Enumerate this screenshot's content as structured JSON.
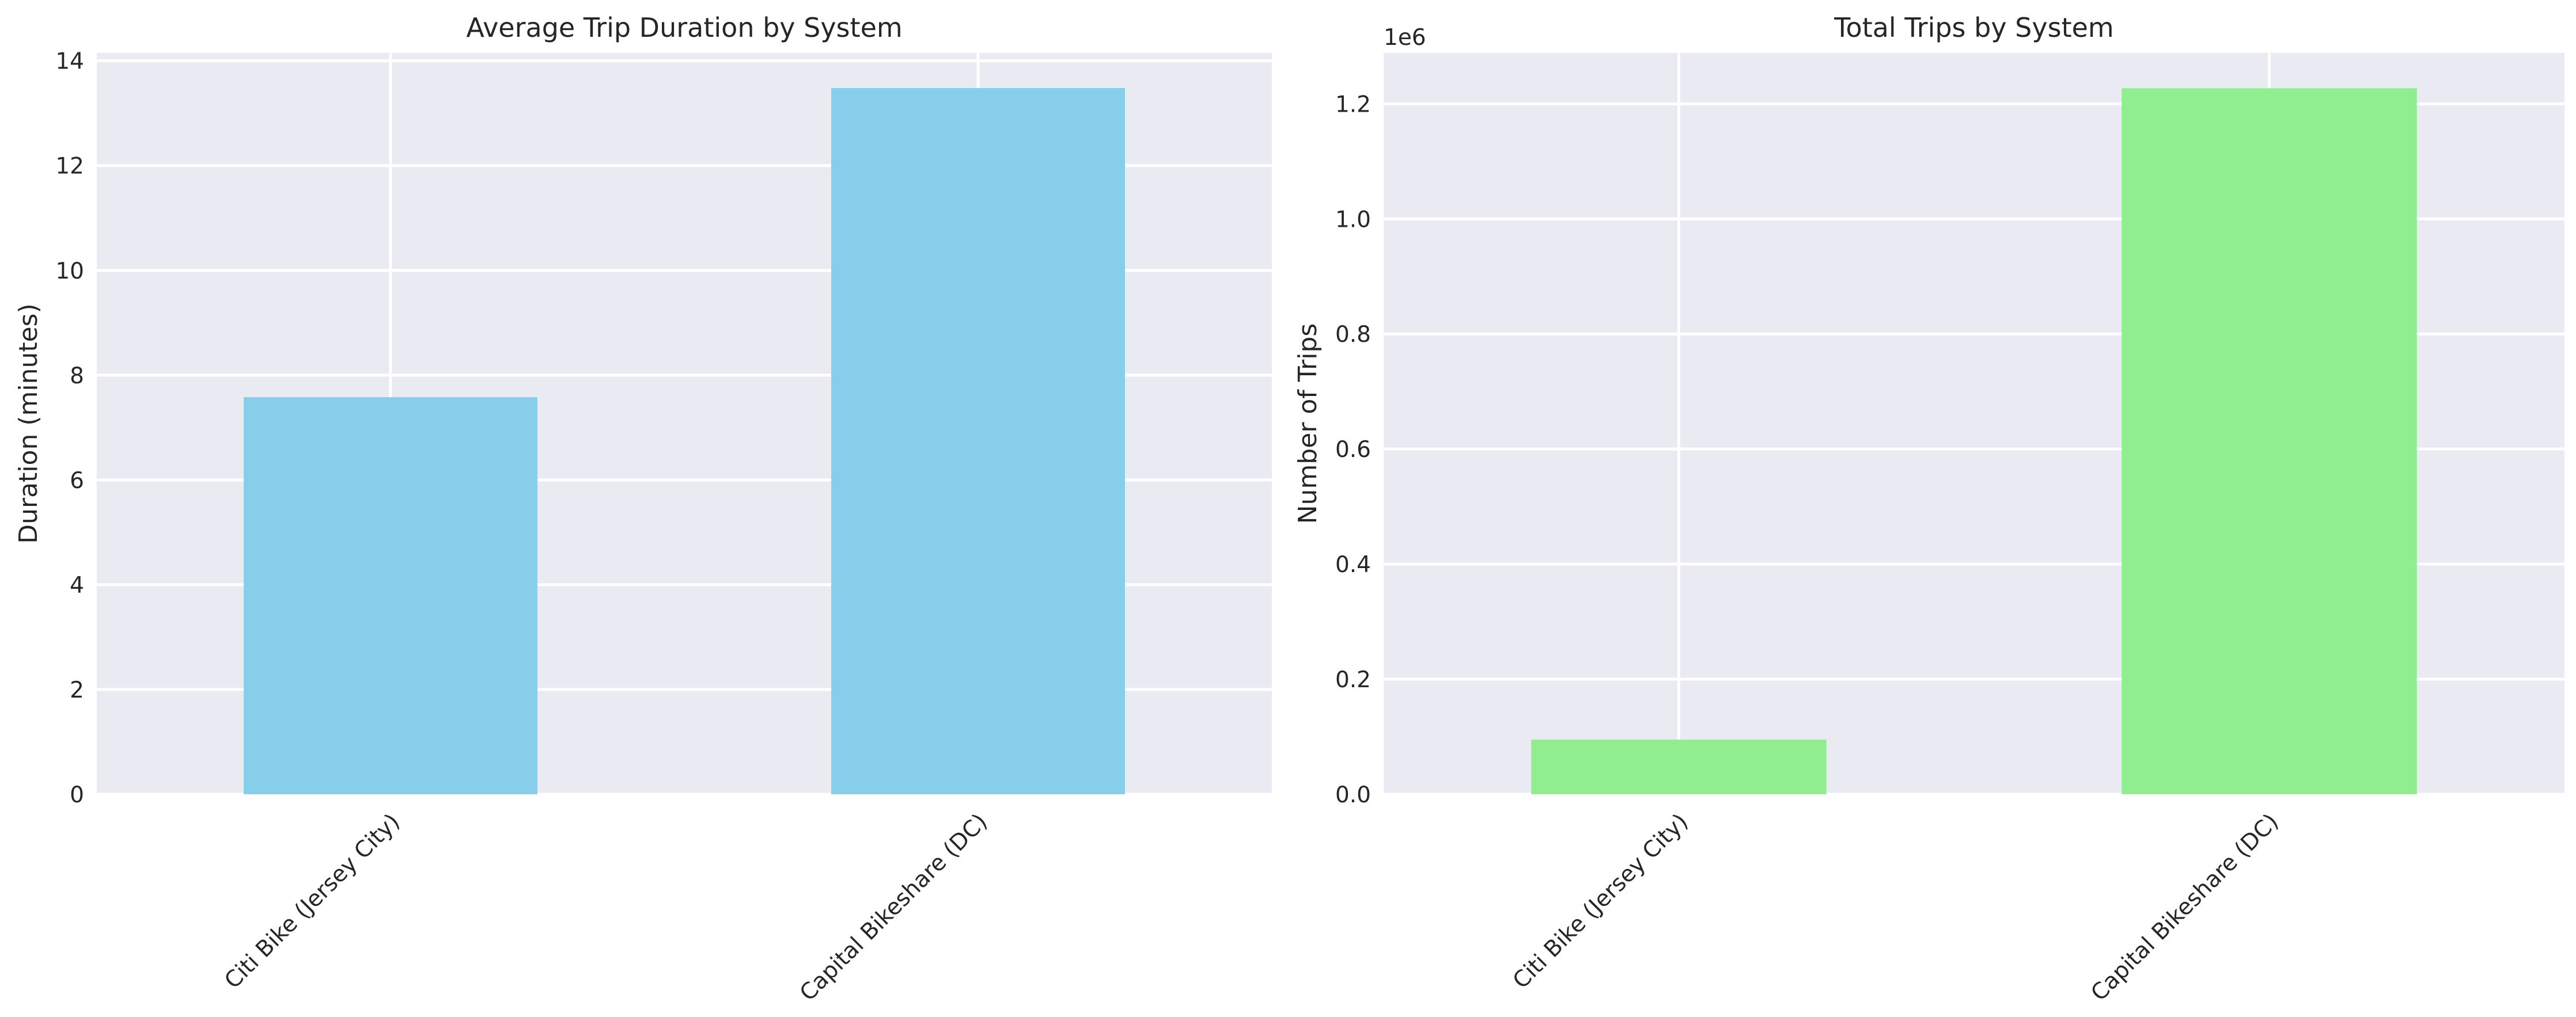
{
  "chart_data": [
    {
      "type": "bar",
      "title": "Average Trip Duration by System",
      "xlabel": "",
      "ylabel": "Duration (minutes)",
      "categories": [
        "Citi Bike (Jersey City)",
        "Capital Bikeshare (DC)"
      ],
      "values": [
        7.58,
        13.48
      ],
      "ylim": [
        0,
        14.15
      ],
      "yticks": [
        0,
        2,
        4,
        6,
        8,
        10,
        12,
        14
      ],
      "ytick_labels": [
        "0",
        "2",
        "4",
        "6",
        "8",
        "10",
        "12",
        "14"
      ],
      "offset_text": "",
      "bar_color": "#87ceeb",
      "grid": true
    },
    {
      "type": "bar",
      "title": "Total Trips by System",
      "xlabel": "",
      "ylabel": "Number of Trips",
      "categories": [
        "Citi Bike (Jersey City)",
        "Capital Bikeshare (DC)"
      ],
      "values": [
        95000,
        1227000
      ],
      "ylim": [
        0,
        1288350
      ],
      "yticks": [
        0,
        200000,
        400000,
        600000,
        800000,
        1000000,
        1200000
      ],
      "ytick_labels": [
        "0.0",
        "0.2",
        "0.4",
        "0.6",
        "0.8",
        "1.0",
        "1.2"
      ],
      "offset_text": "1e6",
      "bar_color": "#90ee90",
      "grid": true
    }
  ]
}
